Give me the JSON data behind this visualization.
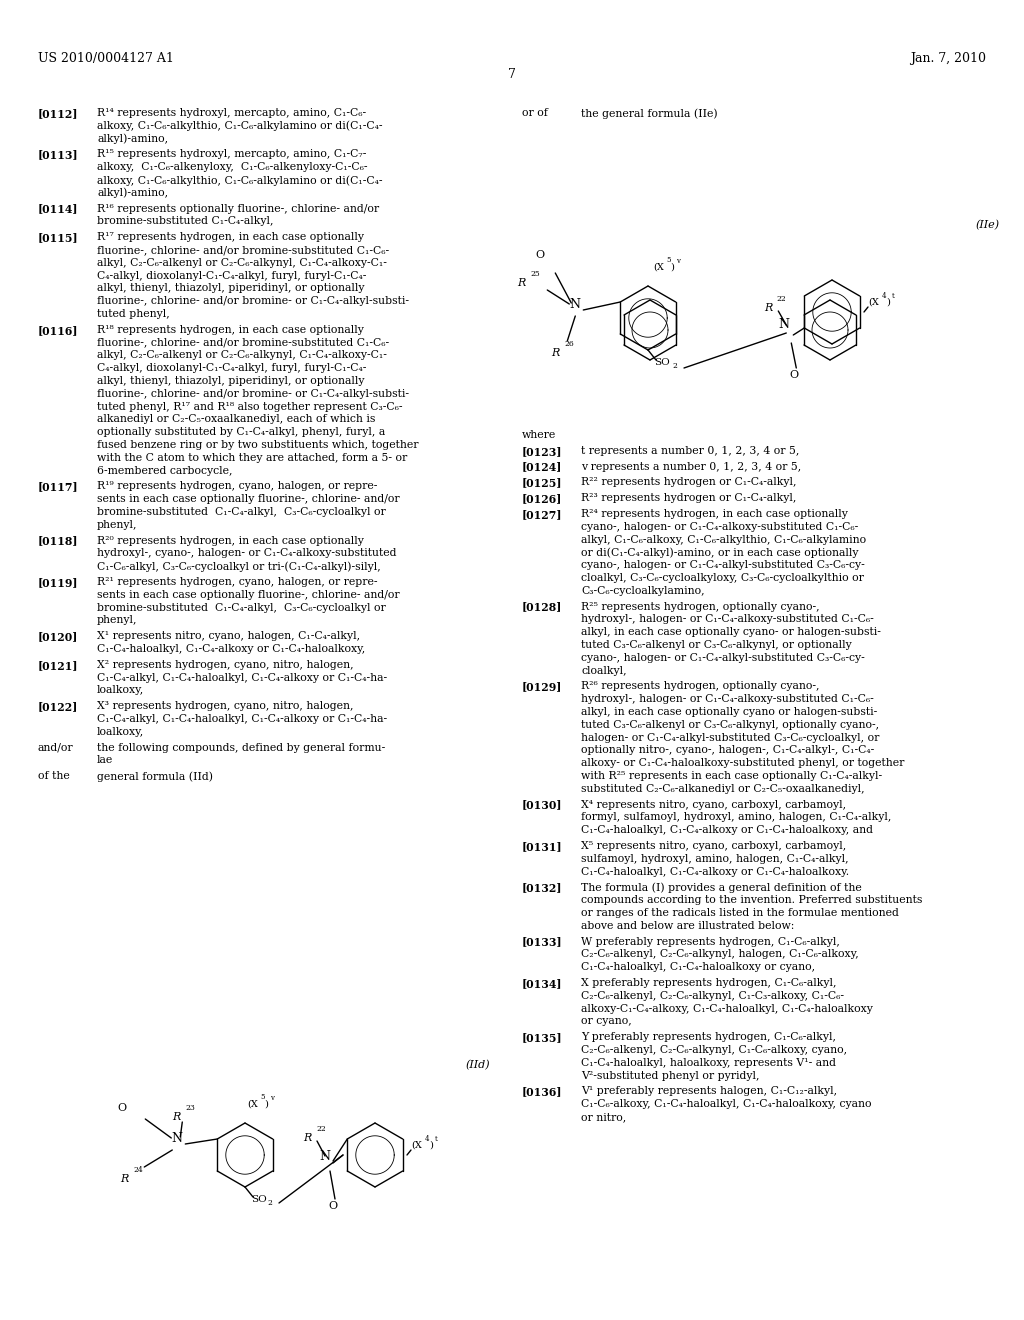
{
  "page_header_left": "US 2010/0004127 A1",
  "page_header_right": "Jan. 7, 2010",
  "page_number": "7",
  "background_color": "#ffffff",
  "text_color": "#000000"
}
